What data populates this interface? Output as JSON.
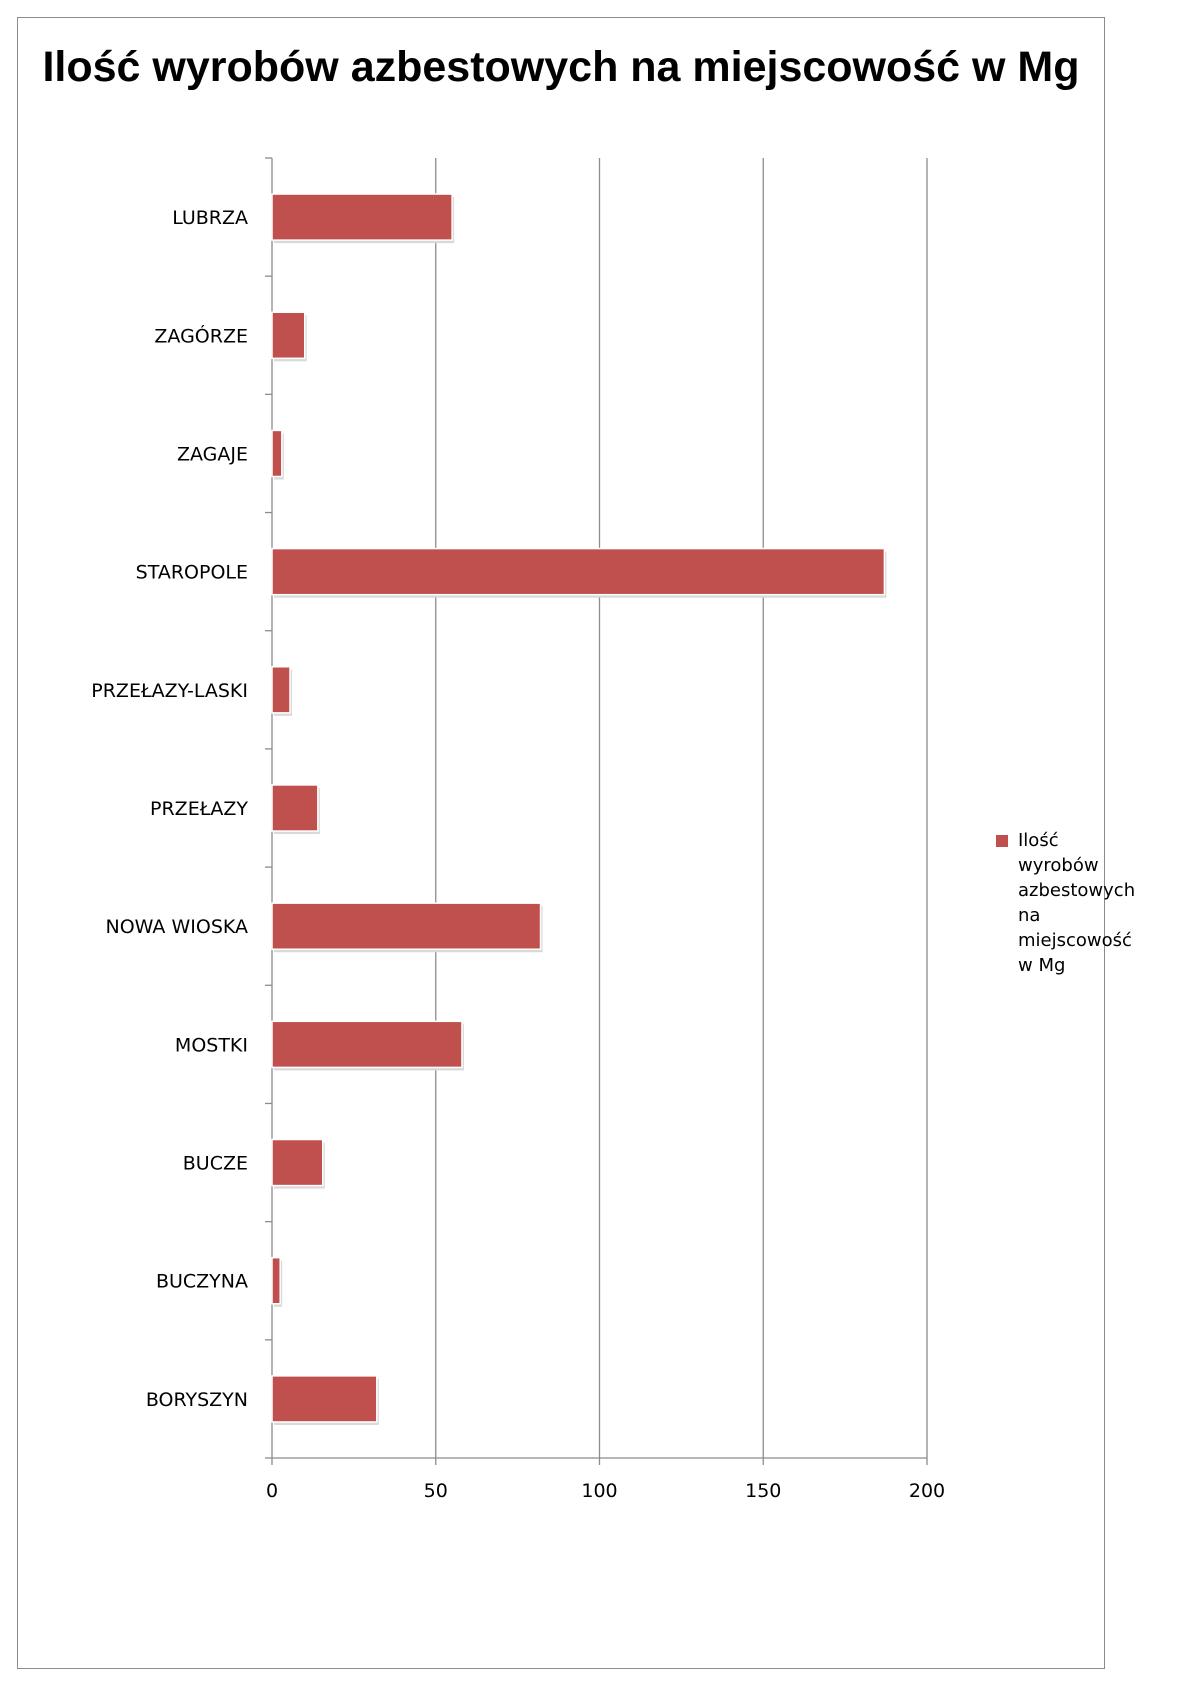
{
  "chart_data": {
    "type": "bar",
    "orientation": "horizontal",
    "title": "Ilość wyrobów azbestowych na miejscowość w Mg",
    "categories": [
      "LUBRZA",
      "ZAGÓRZE",
      "ZAGAJE",
      "STAROPOLE",
      "PRZEŁAZY-LASKI",
      "PRZEŁAZY",
      "NOWA WIOSKA",
      "MOSTKI",
      "BUCZE",
      "BUCZYNA",
      "BORYSZYN"
    ],
    "series": [
      {
        "name": "Ilość wyrobów azbestowych na miejscowość w Mg",
        "values": [
          55,
          10,
          3,
          187,
          5.5,
          14,
          82,
          58,
          15.5,
          2.5,
          32
        ],
        "color": "#c0504d"
      }
    ],
    "xlim": [
      0,
      200
    ],
    "xticks": [
      "0",
      "50",
      "100",
      "150",
      "200"
    ],
    "grid": "vertical",
    "legend_position": "right"
  }
}
